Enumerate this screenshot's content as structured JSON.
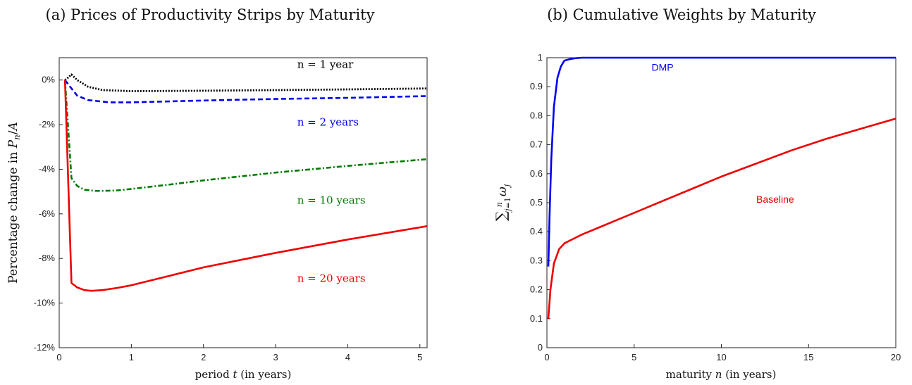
{
  "chart_data": [
    {
      "type": "line",
      "title": "(a) Prices of Productivity Strips by Maturity",
      "xlabel": "period t (in years)",
      "ylabel": "Percentage change in Pn/A",
      "xlim": [
        0,
        5.1
      ],
      "ylim": [
        -12,
        1
      ],
      "xticks": [
        "0",
        "1",
        "2",
        "3",
        "4",
        "5"
      ],
      "yticks": [
        "0%",
        "-2%",
        "-4%",
        "-6%",
        "-8%",
        "-10%",
        "-12%"
      ],
      "grid": false,
      "series": [
        {
          "name": "n = 1 year",
          "color": "#000000",
          "style": "dotted",
          "x": [
            0.08,
            0.12,
            0.17,
            0.25,
            0.4,
            0.6,
            1.0,
            2.0,
            3.0,
            4.0,
            5.1
          ],
          "y": [
            0,
            0.1,
            0.25,
            0.0,
            -0.3,
            -0.45,
            -0.5,
            -0.48,
            -0.45,
            -0.42,
            -0.38
          ]
        },
        {
          "name": "n = 2 years",
          "color": "#0000ee",
          "style": "dashed",
          "x": [
            0.08,
            0.15,
            0.25,
            0.4,
            0.7,
            1.0,
            2.0,
            3.0,
            4.0,
            5.1
          ],
          "y": [
            0,
            -0.3,
            -0.7,
            -0.9,
            -1.0,
            -1.0,
            -0.92,
            -0.85,
            -0.8,
            -0.72
          ]
        },
        {
          "name": "n = 10 years",
          "color": "#007a00",
          "style": "dashdot",
          "x": [
            0.08,
            0.17,
            0.25,
            0.35,
            0.5,
            0.6,
            0.8,
            1.0,
            1.5,
            2.0,
            3.0,
            4.0,
            5.1
          ],
          "y": [
            0,
            -4.4,
            -4.75,
            -4.92,
            -4.97,
            -4.97,
            -4.95,
            -4.88,
            -4.7,
            -4.5,
            -4.15,
            -3.85,
            -3.55
          ]
        },
        {
          "name": "n = 20 years",
          "color": "#ee0000",
          "style": "solid",
          "x": [
            0.08,
            0.17,
            0.25,
            0.35,
            0.45,
            0.6,
            0.8,
            1.0,
            1.5,
            2.0,
            3.0,
            4.0,
            5.1
          ],
          "y": [
            0,
            -9.1,
            -9.3,
            -9.42,
            -9.45,
            -9.42,
            -9.32,
            -9.2,
            -8.8,
            -8.4,
            -7.75,
            -7.15,
            -6.55
          ]
        }
      ],
      "annotations": [
        {
          "text": "n = 1 year",
          "x": 3.3,
          "y": 0.55,
          "color": "#000000"
        },
        {
          "text": "n = 2 years",
          "x": 3.3,
          "y": -2.05,
          "color": "#0000ee"
        },
        {
          "text": "n = 10 years",
          "x": 3.3,
          "y": -5.55,
          "color": "#007a00"
        },
        {
          "text": "n = 20 years",
          "x": 3.3,
          "y": -9.05,
          "color": "#ee0000"
        }
      ]
    },
    {
      "type": "line",
      "title": "(b) Cumulative Weights by Maturity",
      "xlabel": "maturity n (in years)",
      "ylabel": "Σ_{j=1}^{n} ω_j",
      "xlim": [
        0,
        20
      ],
      "ylim": [
        0,
        1
      ],
      "xticks": [
        "0",
        "5",
        "10",
        "15",
        "20"
      ],
      "yticks": [
        "0",
        "0.1",
        "0.2",
        "0.3",
        "0.4",
        "0.5",
        "0.6",
        "0.7",
        "0.8",
        "0.9",
        "1"
      ],
      "grid": false,
      "series": [
        {
          "name": "DMP",
          "color": "#0000ee",
          "style": "solid",
          "x": [
            0.08,
            0.15,
            0.25,
            0.4,
            0.6,
            0.8,
            1.0,
            1.3,
            1.6,
            2.0,
            3.0,
            5.0,
            10.0,
            15.0,
            20.0
          ],
          "y": [
            0.28,
            0.45,
            0.65,
            0.83,
            0.93,
            0.97,
            0.99,
            0.995,
            0.998,
            1.0,
            1.0,
            1.0,
            1.0,
            1.0,
            1.0
          ]
        },
        {
          "name": "Baseline",
          "color": "#ee0000",
          "style": "solid",
          "x": [
            0.08,
            0.2,
            0.4,
            0.7,
            1.0,
            1.5,
            2.0,
            3.0,
            4.0,
            5.0,
            6.0,
            8.0,
            10.0,
            12.0,
            14.0,
            16.0,
            18.0,
            20.0
          ],
          "y": [
            0.1,
            0.2,
            0.29,
            0.34,
            0.36,
            0.375,
            0.39,
            0.415,
            0.44,
            0.465,
            0.49,
            0.54,
            0.59,
            0.635,
            0.68,
            0.72,
            0.755,
            0.79
          ]
        }
      ],
      "annotations": [
        {
          "text": "DMP",
          "x": 6.0,
          "y": 0.955,
          "color": "#0000ee"
        },
        {
          "text": "Baseline",
          "x": 12.0,
          "y": 0.5,
          "color": "#ee0000"
        }
      ]
    }
  ]
}
